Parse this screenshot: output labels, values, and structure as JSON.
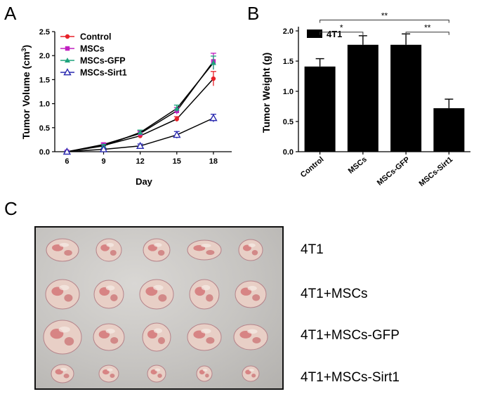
{
  "panels": {
    "a": "A",
    "b": "B",
    "c": "C"
  },
  "chart_data": [
    {
      "type": "line",
      "ylabel_prefix": "Tumor Volume (cm",
      "ylabel_sup": "3",
      "ylabel_suffix": ")",
      "xlabel": "Day",
      "x": [
        6,
        9,
        12,
        15,
        18
      ],
      "xticks": [
        "6",
        "9",
        "12",
        "15",
        "18"
      ],
      "ylim": [
        0,
        2.5
      ],
      "yticks": [
        "0.0",
        "0.5",
        "1.0",
        "1.5",
        "2.0",
        "2.5"
      ],
      "legend_position": "top-left",
      "series": [
        {
          "name": "Control",
          "color": "#e8222a",
          "marker": "circle",
          "values": [
            0.0,
            0.13,
            0.33,
            0.68,
            1.52
          ],
          "errors": [
            0.01,
            0.02,
            0.04,
            0.05,
            0.15
          ]
        },
        {
          "name": "MSCs",
          "color": "#c020c0",
          "marker": "square",
          "values": [
            0.0,
            0.15,
            0.38,
            0.85,
            1.88
          ],
          "errors": [
            0.01,
            0.03,
            0.05,
            0.07,
            0.17
          ]
        },
        {
          "name": "MSCs-GFP",
          "color": "#1ea37c",
          "marker": "triangle-filled",
          "values": [
            0.0,
            0.12,
            0.4,
            0.9,
            1.85
          ],
          "errors": [
            0.01,
            0.03,
            0.05,
            0.07,
            0.14
          ]
        },
        {
          "name": "MSCs-Sirt1",
          "color": "#2a2ab0",
          "marker": "triangle-open",
          "values": [
            0.0,
            0.05,
            0.12,
            0.35,
            0.7
          ],
          "errors": [
            0.01,
            0.02,
            0.04,
            0.07,
            0.08
          ]
        }
      ]
    },
    {
      "type": "bar",
      "legend": "4T1",
      "ylabel": "Tumor Weight (g)",
      "categories": [
        "Control",
        "MSCs",
        "MSCs-GFP",
        "MSCs-Sirt1"
      ],
      "values": [
        1.41,
        1.77,
        1.77,
        0.72
      ],
      "errors": [
        0.13,
        0.15,
        0.18,
        0.15
      ],
      "ylim": [
        0,
        2.0
      ],
      "yticks": [
        "0.0",
        "0.5",
        "1.0",
        "1.5",
        "2.0"
      ],
      "bar_color": "#000000",
      "significance": [
        {
          "from": 0,
          "to": 1,
          "label": "*",
          "y": 1.98
        },
        {
          "from": 0,
          "to": 3,
          "label": "**",
          "y": 2.18
        },
        {
          "from": 2,
          "to": 3,
          "label": "**",
          "y": 1.98
        }
      ]
    }
  ],
  "photo": {
    "row_labels": [
      "4T1",
      "4T1+MSCs",
      "4T1+MSCs-GFP",
      "4T1+MSCs-Sirt1"
    ]
  }
}
